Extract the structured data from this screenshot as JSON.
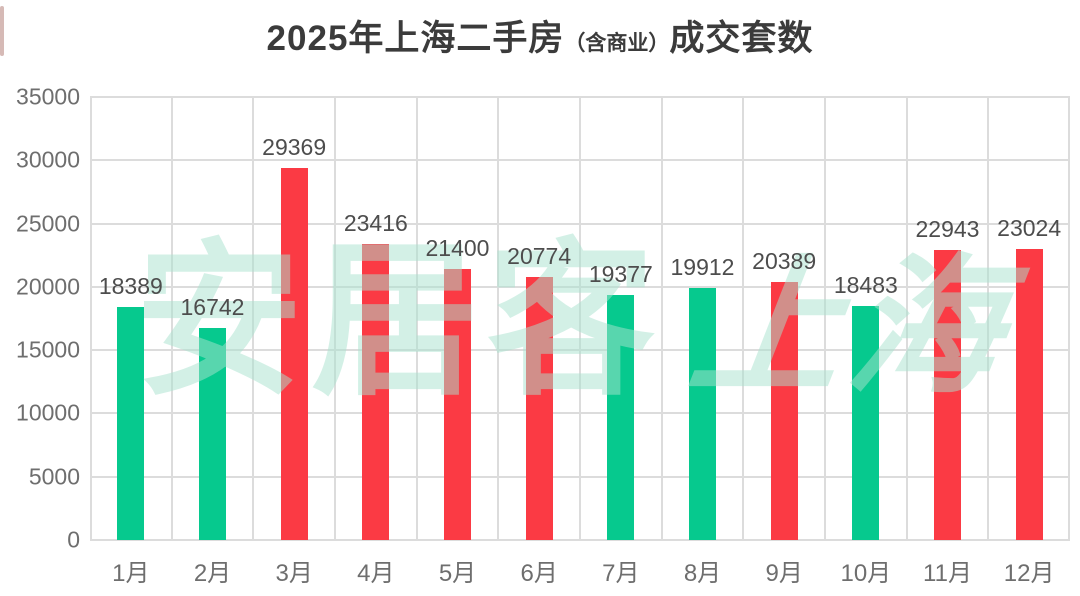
{
  "title": {
    "prefix": "2025年上海二手房",
    "paren": "（含商业）",
    "suffix": "成交套数"
  },
  "watermark": {
    "text_1": "安居客",
    "text_2": "上海"
  },
  "colors": {
    "green": "#06c98e",
    "red": "#fb3a44",
    "grid": "#dcdcdc",
    "axis_label": "#6e6e6e",
    "value_label": "#4d4d4d",
    "title": "#3b3b3b",
    "watermark": "#a9e3cf",
    "background": "#ffffff"
  },
  "chart_data": {
    "type": "bar",
    "title": "2025年上海二手房（含商业）成交套数",
    "categories": [
      "1月",
      "2月",
      "3月",
      "4月",
      "5月",
      "6月",
      "7月",
      "8月",
      "9月",
      "10月",
      "11月",
      "12月"
    ],
    "values": [
      18389,
      16742,
      29369,
      23416,
      21400,
      20774,
      19377,
      19912,
      20389,
      18483,
      22943,
      23024
    ],
    "bar_colors": [
      "green",
      "green",
      "red",
      "red",
      "red",
      "red",
      "green",
      "green",
      "red",
      "green",
      "red",
      "red"
    ],
    "xlabel": "",
    "ylabel": "",
    "ylim": [
      0,
      35000
    ],
    "ytick_interval": 5000,
    "ytick_labels": [
      "35000",
      "30000",
      "25000",
      "20000",
      "15000",
      "10000",
      "5000",
      "0"
    ],
    "grid": "horizontal-and-vertical",
    "legend": "none",
    "data_labels": true
  }
}
